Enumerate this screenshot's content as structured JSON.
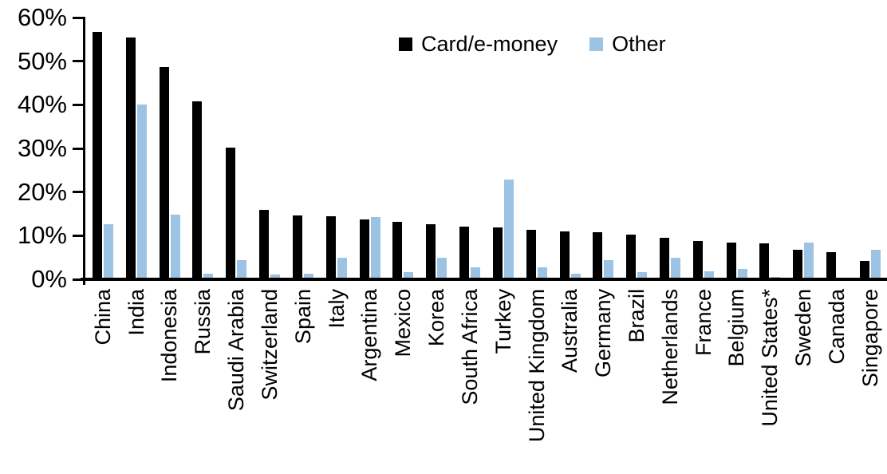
{
  "chart_data": {
    "type": "bar",
    "title": "",
    "xlabel": "",
    "ylabel": "",
    "ylim": [
      0,
      60
    ],
    "ytick_values": [
      60,
      50,
      40,
      30,
      20,
      10,
      0
    ],
    "ytick_labels": [
      "60%",
      "50%",
      "40%",
      "30%",
      "20%",
      "10%",
      "0%"
    ],
    "grid": false,
    "legend_position": "top-center",
    "categories": [
      "China",
      "India",
      "Indonesia",
      "Russia",
      "Saudi Arabia",
      "Switzerland",
      "Spain",
      "Italy",
      "Argentina",
      "Mexico",
      "Korea",
      "South Africa",
      "Turkey",
      "United Kingdom",
      "Australia",
      "Germany",
      "Brazil",
      "Netherlands",
      "France",
      "Belgium",
      "United States*",
      "Sweden",
      "Canada",
      "Singapore"
    ],
    "series": [
      {
        "name": "Card/e-money",
        "color": "#000000",
        "values": [
          56.3,
          55.0,
          48.3,
          40.5,
          29.8,
          15.6,
          14.2,
          14.1,
          13.3,
          12.9,
          12.2,
          11.7,
          11.5,
          11.0,
          10.7,
          10.5,
          9.8,
          9.1,
          8.5,
          8.0,
          7.8,
          6.5,
          5.9,
          3.8
        ]
      },
      {
        "name": "Other",
        "color": "#9CC2E4",
        "values": [
          12.3,
          39.7,
          14.5,
          1.0,
          4.0,
          0.8,
          1.0,
          4.5,
          13.9,
          1.3,
          4.5,
          2.3,
          22.6,
          2.3,
          1.0,
          4.0,
          1.2,
          4.6,
          1.4,
          2.0,
          0.2,
          8.0,
          0.0,
          6.5
        ]
      }
    ]
  }
}
